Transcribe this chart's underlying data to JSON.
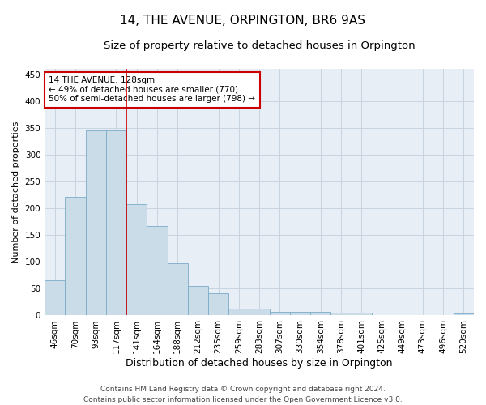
{
  "title": "14, THE AVENUE, ORPINGTON, BR6 9AS",
  "subtitle": "Size of property relative to detached houses in Orpington",
  "xlabel": "Distribution of detached houses by size in Orpington",
  "ylabel": "Number of detached properties",
  "categories": [
    "46sqm",
    "70sqm",
    "93sqm",
    "117sqm",
    "141sqm",
    "164sqm",
    "188sqm",
    "212sqm",
    "235sqm",
    "259sqm",
    "283sqm",
    "307sqm",
    "330sqm",
    "354sqm",
    "378sqm",
    "401sqm",
    "425sqm",
    "449sqm",
    "473sqm",
    "496sqm",
    "520sqm"
  ],
  "values": [
    65,
    222,
    345,
    345,
    207,
    167,
    97,
    55,
    42,
    13,
    13,
    7,
    7,
    7,
    5,
    5,
    0,
    0,
    0,
    0,
    3
  ],
  "bar_color": "#c9dce8",
  "bar_edge_color": "#7aaac8",
  "grid_color": "#c8d4e0",
  "bg_color": "#e8eef5",
  "vline_color": "#cc0000",
  "vline_x": 3.5,
  "annotation_text": "14 THE AVENUE: 128sqm\n← 49% of detached houses are smaller (770)\n50% of semi-detached houses are larger (798) →",
  "annotation_box_edge_color": "#cc0000",
  "footer_line1": "Contains HM Land Registry data © Crown copyright and database right 2024.",
  "footer_line2": "Contains public sector information licensed under the Open Government Licence v3.0.",
  "ylim": [
    0,
    460
  ],
  "title_fontsize": 11,
  "subtitle_fontsize": 9.5,
  "xlabel_fontsize": 9,
  "ylabel_fontsize": 8,
  "tick_fontsize": 7.5,
  "footer_fontsize": 6.5,
  "annotation_fontsize": 7.5
}
